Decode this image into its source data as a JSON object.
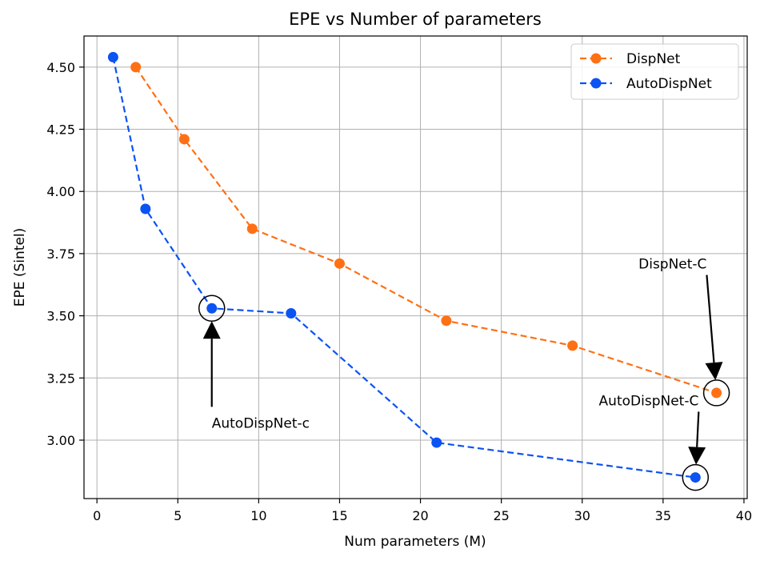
{
  "chart_data": {
    "type": "line",
    "title": "EPE vs Number of parameters",
    "xlabel": "Num parameters (M)",
    "ylabel": "EPE (Sintel)",
    "xlim": [
      -0.8,
      40.2
    ],
    "ylim": [
      2.765,
      4.625
    ],
    "xticks": [
      0,
      5,
      10,
      15,
      20,
      25,
      30,
      35,
      40
    ],
    "xtick_labels": [
      "0",
      "5",
      "10",
      "15",
      "20",
      "25",
      "30",
      "35",
      "40"
    ],
    "yticks": [
      3.0,
      3.25,
      3.5,
      3.75,
      4.0,
      4.25,
      4.5
    ],
    "ytick_labels": [
      "3.00",
      "3.25",
      "3.50",
      "3.75",
      "4.00",
      "4.25",
      "4.50"
    ],
    "grid": true,
    "legend_position": "top-right",
    "series": [
      {
        "name": "DispNet",
        "color": "#ff7014",
        "line_style": "dashed",
        "marker": "circle",
        "x": [
          2.4,
          5.4,
          9.6,
          15.0,
          21.6,
          29.4,
          38.3
        ],
        "y": [
          4.5,
          4.21,
          3.85,
          3.71,
          3.48,
          3.38,
          3.19
        ]
      },
      {
        "name": "AutoDispNet",
        "color": "#0b53f3",
        "line_style": "dashed",
        "marker": "circle",
        "x": [
          1.0,
          3.0,
          7.1,
          12.0,
          21.0,
          37.0
        ],
        "y": [
          4.54,
          3.93,
          3.53,
          3.51,
          2.99,
          2.85
        ]
      }
    ],
    "annotations": [
      {
        "text": "AutoDispNet-c",
        "point": [
          7.1,
          3.53
        ],
        "text_at": [
          7.1,
          3.05
        ],
        "text_anchor": "start"
      },
      {
        "text": "DispNet-C",
        "point": [
          38.3,
          3.19
        ],
        "text_at": [
          37.7,
          3.69
        ],
        "text_anchor": "end"
      },
      {
        "text": "AutoDispNet-C",
        "point": [
          37.0,
          2.85
        ],
        "text_at": [
          37.2,
          3.14
        ],
        "text_anchor": "end"
      }
    ]
  }
}
